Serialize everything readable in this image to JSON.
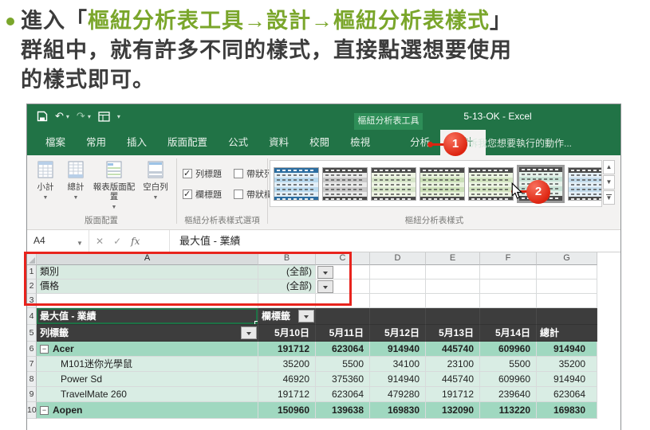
{
  "instruction": {
    "prefix": "進入「",
    "highlight": "樞紐分析表工具→設計→樞紐分析表樣式",
    "suffix": "」",
    "line2": "群組中，就有許多不同的樣式，直接點選想要使用",
    "line3": "的樣式即可。"
  },
  "titlebar": {
    "context_tab": "樞紐分析表工具",
    "title": "5-13-OK - Excel"
  },
  "tabs": {
    "file": "檔案",
    "items": [
      "常用",
      "插入",
      "版面配置",
      "公式",
      "資料",
      "校閱",
      "檢視",
      "分析",
      "設計"
    ],
    "active": "設計",
    "tell_me": "告訴我您想要執行的動作..."
  },
  "ribbon": {
    "layout_group": {
      "label": "版面配置",
      "buttons": [
        "小計",
        "總計",
        "報表版面配置",
        "空白列"
      ]
    },
    "options_group": {
      "label": "樞紐分析表樣式選項",
      "options": [
        {
          "label": "列標題",
          "checked": true
        },
        {
          "label": "帶狀列",
          "checked": false
        },
        {
          "label": "欄標題",
          "checked": true
        },
        {
          "label": "帶狀欄",
          "checked": false
        }
      ]
    },
    "styles_group": {
      "label": "樞紐分析表樣式",
      "styles": [
        {
          "name": "pivot-style-blue",
          "header": "#2c6da0",
          "band_mid": "#b9d9ee",
          "band_light": "#e2eff8",
          "selected": true
        },
        {
          "name": "pivot-style-gray",
          "header": "#4a4a4a",
          "band_mid": "#c9c9c9",
          "band_light": "#e9e9e9"
        },
        {
          "name": "pivot-style-green-1",
          "header": "#4b4b4b",
          "band_mid": "#d7e6c9",
          "band_light": "#eef4e4"
        },
        {
          "name": "pivot-style-green-2",
          "header": "#4b4b4b",
          "band_mid": "#cbe0b8",
          "band_light": "#e8f2dc"
        },
        {
          "name": "pivot-style-green-3",
          "header": "#4b4b4b",
          "band_mid": "#d2e4c0",
          "band_light": "#ecf4e2"
        },
        {
          "name": "pivot-style-teal",
          "header": "#4b4b4b",
          "band_mid": "#c8e2d6",
          "band_light": "#e7f2ec",
          "hovered": true
        },
        {
          "name": "pivot-style-blue-2",
          "header": "#4b4b4b",
          "band_mid": "#c4dcec",
          "band_light": "#e4eff7"
        }
      ]
    }
  },
  "formula_bar": {
    "name_box": "A4",
    "fx": "fx",
    "value": "最大值 - 業績"
  },
  "sheet": {
    "col_headers": [
      "A",
      "B",
      "C",
      "D",
      "E",
      "F",
      "G"
    ],
    "rows": {
      "r1": {
        "num": "1",
        "a": "類別",
        "b": "(全部)"
      },
      "r2": {
        "num": "2",
        "a": "價格",
        "b": "(全部)"
      },
      "r3": {
        "num": "3"
      },
      "r4": {
        "num": "4",
        "a": "最大值 - 業績",
        "b": "欄標籤"
      },
      "r5": {
        "num": "5",
        "a": "列標籤",
        "c1": "5月10日",
        "c2": "5月11日",
        "c3": "5月12日",
        "c4": "5月13日",
        "c5": "5月14日",
        "c6": "總計"
      },
      "r6": {
        "num": "6",
        "a": "Acer",
        "v": [
          "191712",
          "623064",
          "914940",
          "445740",
          "609960",
          "914940"
        ]
      },
      "r7": {
        "num": "7",
        "a": "M101迷你光學鼠",
        "v": [
          "35200",
          "5500",
          "34100",
          "23100",
          "5500",
          "35200"
        ]
      },
      "r8": {
        "num": "8",
        "a": "Power Sd",
        "v": [
          "46920",
          "375360",
          "914940",
          "445740",
          "609960",
          "914940"
        ]
      },
      "r9": {
        "num": "9",
        "a": "TravelMate 260",
        "v": [
          "191712",
          "623064",
          "479280",
          "191712",
          "239640",
          "623064"
        ]
      },
      "r10": {
        "num": "10",
        "a": "Aopen",
        "v": [
          "150960",
          "139638",
          "169830",
          "132090",
          "113220",
          "169830"
        ]
      }
    }
  },
  "annotations": {
    "step1": "1",
    "step2": "2"
  },
  "colors": {
    "excel_green": "#217346",
    "contextual_green": "#2e8e58",
    "annotation_red": "#e8231d",
    "instruction_green": "#7aa62b",
    "pivot_dark_row": "#3d3d3d",
    "pivot_subtotal_row": "#a0d8c0",
    "pivot_item_row": "#d9ede4",
    "filter_row": "#d8eae1"
  }
}
